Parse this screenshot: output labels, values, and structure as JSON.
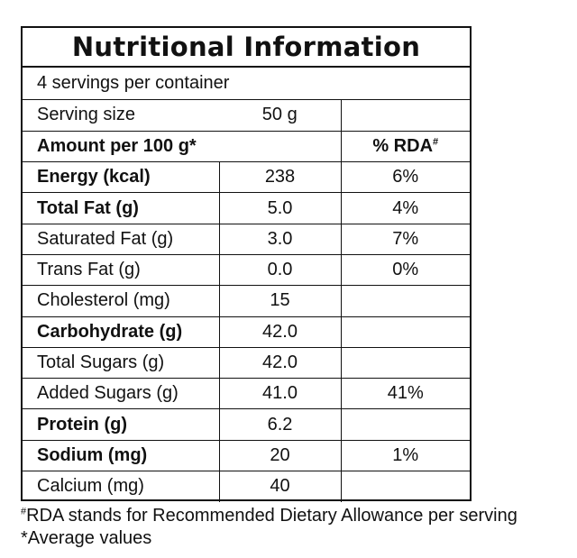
{
  "title": "Nutritional Information",
  "servings_per_container": "4 servings per container",
  "serving_size": {
    "label": "Serving size",
    "value": "50 g"
  },
  "amount_header": {
    "label": "Amount per 100 g*",
    "rda_label": "% RDA",
    "rda_mark": "#"
  },
  "rows": [
    {
      "name": "Energy (kcal)",
      "value": "238",
      "rda": "6%"
    },
    {
      "name": "Total Fat (g)",
      "value": "5.0",
      "rda": "4%"
    },
    {
      "name": "Saturated Fat (g)",
      "value": "3.0",
      "rda": "7%"
    },
    {
      "name": "Trans Fat (g)",
      "value": "0.0",
      "rda": "0%"
    },
    {
      "name": "Cholesterol (mg)",
      "value": "15",
      "rda": ""
    },
    {
      "name": "Carbohydrate (g)",
      "value": "42.0",
      "rda": ""
    },
    {
      "name": "Total Sugars (g)",
      "value": "42.0",
      "rda": ""
    },
    {
      "name": "Added Sugars (g)",
      "value": "41.0",
      "rda": "41%"
    },
    {
      "name": "Protein (g)",
      "value": "6.2",
      "rda": ""
    },
    {
      "name": "Sodium (mg)",
      "value": "20",
      "rda": "1%"
    },
    {
      "name": "Calcium (mg)",
      "value": "40",
      "rda": ""
    }
  ],
  "footnotes": {
    "rda_mark": "#",
    "rda_text": "RDA stands for Recommended Dietary Allowance per serving",
    "average": "*Average values"
  }
}
